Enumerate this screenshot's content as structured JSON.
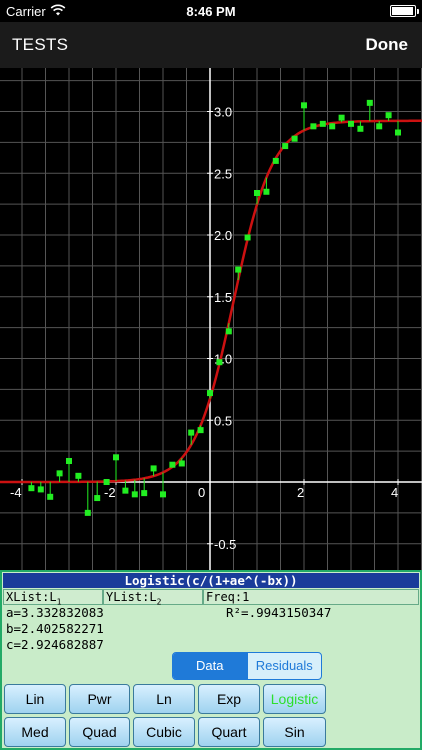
{
  "status_bar": {
    "carrier": "Carrier",
    "time": "8:46 PM",
    "battery_level": 0.95
  },
  "nav": {
    "left_label": "TESTS",
    "right_label": "Done"
  },
  "colors": {
    "curve": "#cc1111",
    "points": "#22ee22",
    "residual_lines": "#22ee22",
    "grid": "#555555",
    "axis": "#ffffff",
    "panel_title_bg": "#1a3c9a",
    "active_segment": "#1f7ad8"
  },
  "chart_data": {
    "type": "scatter",
    "x_ticks": [
      "-4",
      "-2",
      "0",
      "2",
      "4"
    ],
    "y_ticks": [
      "3.0",
      "2.5",
      "2.0",
      "1.5",
      "1.0",
      "0.5",
      "-0.5"
    ],
    "xlim": [
      -4.4,
      4.5
    ],
    "ylim": [
      -0.7,
      3.5
    ],
    "grid": true,
    "model": {
      "name": "Logistic",
      "a": 3.332832083,
      "b": 2.402582271,
      "c": 2.924682887
    },
    "points": [
      {
        "x": -3.8,
        "y": -0.05
      },
      {
        "x": -3.6,
        "y": -0.06
      },
      {
        "x": -3.4,
        "y": -0.12
      },
      {
        "x": -3.2,
        "y": 0.07
      },
      {
        "x": -3.0,
        "y": 0.17
      },
      {
        "x": -2.8,
        "y": 0.05
      },
      {
        "x": -2.6,
        "y": -0.25
      },
      {
        "x": -2.4,
        "y": -0.13
      },
      {
        "x": -2.2,
        "y": 0.0
      },
      {
        "x": -2.0,
        "y": 0.2
      },
      {
        "x": -1.8,
        "y": -0.07
      },
      {
        "x": -1.6,
        "y": -0.1
      },
      {
        "x": -1.4,
        "y": -0.09
      },
      {
        "x": -1.2,
        "y": 0.11
      },
      {
        "x": -1.0,
        "y": -0.1
      },
      {
        "x": -0.8,
        "y": 0.14
      },
      {
        "x": -0.6,
        "y": 0.15
      },
      {
        "x": -0.4,
        "y": 0.4
      },
      {
        "x": -0.2,
        "y": 0.42
      },
      {
        "x": 0.0,
        "y": 0.72
      },
      {
        "x": 0.2,
        "y": 0.97
      },
      {
        "x": 0.4,
        "y": 1.22
      },
      {
        "x": 0.6,
        "y": 1.72
      },
      {
        "x": 0.8,
        "y": 1.98
      },
      {
        "x": 1.0,
        "y": 2.34
      },
      {
        "x": 1.2,
        "y": 2.35
      },
      {
        "x": 1.4,
        "y": 2.6
      },
      {
        "x": 1.6,
        "y": 2.72
      },
      {
        "x": 1.8,
        "y": 2.78
      },
      {
        "x": 2.0,
        "y": 3.05
      },
      {
        "x": 2.2,
        "y": 2.88
      },
      {
        "x": 2.4,
        "y": 2.9
      },
      {
        "x": 2.6,
        "y": 2.88
      },
      {
        "x": 2.8,
        "y": 2.95
      },
      {
        "x": 3.0,
        "y": 2.9
      },
      {
        "x": 3.2,
        "y": 2.86
      },
      {
        "x": 3.4,
        "y": 3.07
      },
      {
        "x": 3.6,
        "y": 2.88
      },
      {
        "x": 3.8,
        "y": 2.97
      },
      {
        "x": 4.0,
        "y": 2.83
      }
    ]
  },
  "stats": {
    "title": "Logistic(c/(1+ae^(-bx))",
    "xlist_label": "XList:L",
    "xlist_sub": "1",
    "ylist_label": "YList:L",
    "ylist_sub": "2",
    "freq_label": "Freq:1",
    "a_line": "a=3.332832083",
    "b_line": "b=2.402582271",
    "c_line": "c=2.924682887",
    "r2_line": "R²=.9943150347"
  },
  "view_toggle": {
    "data_label": "Data",
    "residuals_label": "Residuals",
    "selected": "Data"
  },
  "regression_buttons": {
    "lin": "Lin",
    "pwr": "Pwr",
    "ln": "Ln",
    "exp": "Exp",
    "logistic": "Logistic",
    "med": "Med",
    "quad": "Quad",
    "cubic": "Cubic",
    "quart": "Quart",
    "sin": "Sin",
    "selected": "Logistic"
  }
}
